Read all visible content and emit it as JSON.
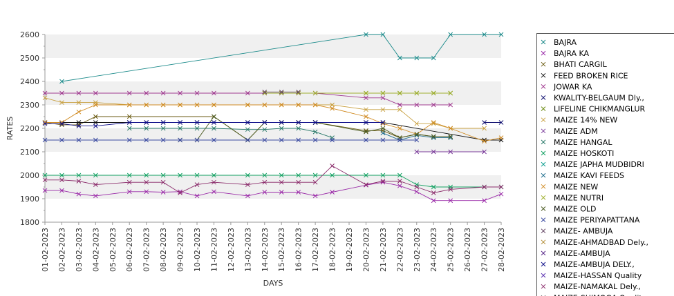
{
  "chart_data": {
    "type": "line",
    "title": "",
    "xlabel": "DAYS",
    "ylabel": "RATES",
    "ylim": [
      1800,
      2600
    ],
    "y_ticks": [
      1800,
      1900,
      2000,
      2100,
      2200,
      2300,
      2400,
      2500,
      2600
    ],
    "grid": "alternating horizontal bands",
    "legend_position": "right",
    "categories": [
      "01-02-2023",
      "02-02-2023",
      "03-02-2023",
      "04-02-2023",
      "05-02-2023",
      "06-02-2023",
      "07-02-2023",
      "08-02-2023",
      "09-02-2023",
      "10-02-2023",
      "11-02-2023",
      "12-02-2023",
      "13-02-2023",
      "14-02-2023",
      "15-02-2023",
      "16-02-2023",
      "17-02-2023",
      "18-02-2023",
      "19-02-2023",
      "20-02-2023",
      "21-02-2023",
      "22-02-2023",
      "23-02-2023",
      "24-02-2023",
      "25-02-2023",
      "26-02-2023",
      "27-02-2023",
      "28-02-2023"
    ],
    "series": [
      {
        "name": "BAJRA",
        "color": "#1a8a8a",
        "values": [
          null,
          2400,
          null,
          null,
          null,
          null,
          null,
          null,
          null,
          null,
          null,
          null,
          null,
          null,
          null,
          null,
          null,
          null,
          null,
          2600,
          2600,
          2500,
          2500,
          2500,
          2600,
          null,
          2600,
          2600
        ]
      },
      {
        "name": "BAJRA KA",
        "color": "#9a2aa8",
        "values": [
          1935,
          1935,
          1920,
          1912,
          null,
          1930,
          1930,
          1928,
          1930,
          1912,
          1930,
          null,
          1912,
          1928,
          1928,
          1928,
          1912,
          1928,
          null,
          1958,
          1970,
          1955,
          1930,
          1892,
          1892,
          null,
          1892,
          1920
        ]
      },
      {
        "name": "BHATI CARGIL",
        "color": "#6a5a10",
        "values": [
          2225,
          2215,
          2215,
          2250,
          null,
          2250,
          null,
          null,
          null,
          null,
          2250,
          null,
          2150,
          2225,
          2225,
          2225,
          2225,
          null,
          null,
          2190,
          2190,
          2160,
          2175,
          2165,
          2165,
          null,
          null,
          null
        ]
      },
      {
        "name": "FEED BROKEN RICE",
        "color": "#101010",
        "values": [
          2225,
          2225,
          2225,
          2225,
          null,
          2225,
          2225,
          2225,
          2225,
          2225,
          2225,
          null,
          2225,
          2225,
          2225,
          2225,
          2225,
          null,
          null,
          2225,
          2225,
          null,
          null,
          null,
          null,
          null,
          2150,
          2150
        ]
      },
      {
        "name": "JOWAR KA",
        "color": "#a03a90",
        "values": [
          2350,
          2350,
          2350,
          2350,
          null,
          2350,
          2350,
          2350,
          2350,
          2350,
          2350,
          null,
          2350,
          2350,
          2350,
          2350,
          2350,
          null,
          null,
          2330,
          2330,
          2300,
          2300,
          2300,
          2300,
          null,
          null,
          null
        ]
      },
      {
        "name": "KWALITY-BELGAUM Dly.,",
        "color": "#101070",
        "values": [
          null,
          null,
          null,
          null,
          null,
          null,
          null,
          null,
          null,
          null,
          null,
          null,
          null,
          null,
          null,
          null,
          null,
          null,
          null,
          null,
          null,
          null,
          null,
          null,
          null,
          null,
          2225,
          2225
        ]
      },
      {
        "name": "LIFELINE CHIKMANGLUR",
        "color": "#6a8a10",
        "values": [
          null,
          null,
          null,
          null,
          null,
          null,
          null,
          null,
          null,
          null,
          null,
          null,
          null,
          null,
          null,
          null,
          null,
          null,
          null,
          2350,
          2350,
          2350,
          2350,
          2350,
          2350,
          null,
          null,
          null
        ]
      },
      {
        "name": "MAIZE 14% NEW",
        "color": "#c8a040",
        "values": [
          2330,
          2310,
          2310,
          2310,
          null,
          2300,
          2300,
          2300,
          2300,
          2300,
          2300,
          null,
          2300,
          2300,
          2300,
          2300,
          2300,
          2300,
          null,
          2280,
          2280,
          2280,
          2220,
          2220,
          2200,
          null,
          2200,
          null
        ]
      },
      {
        "name": "MAIZE ADM",
        "color": "#7a3a9a",
        "values": [
          null,
          null,
          null,
          null,
          null,
          null,
          null,
          null,
          null,
          null,
          null,
          null,
          null,
          null,
          null,
          null,
          null,
          null,
          null,
          null,
          null,
          null,
          2100,
          2100,
          2100,
          null,
          2100,
          null
        ]
      },
      {
        "name": "MAIZE HANGAL",
        "color": "#2a7a6a",
        "values": [
          null,
          null,
          null,
          null,
          null,
          2200,
          2200,
          2200,
          2200,
          2200,
          2200,
          null,
          2195,
          2195,
          2200,
          2200,
          2185,
          2160,
          null,
          null,
          null,
          null,
          null,
          null,
          null,
          null,
          null,
          null
        ]
      },
      {
        "name": "MAIZE HOSKOTI",
        "color": "#10a060",
        "values": [
          2000,
          2000,
          2000,
          2000,
          null,
          2000,
          2000,
          2000,
          2000,
          2000,
          2000,
          null,
          2000,
          2000,
          2000,
          2000,
          2000,
          2000,
          null,
          2000,
          2000,
          2000,
          1960,
          1950,
          1950,
          null,
          1950,
          1950
        ]
      },
      {
        "name": "MAIZE JAPHA MUDBIDRI",
        "color": "#10a090",
        "values": [
          null,
          null,
          null,
          null,
          null,
          null,
          null,
          null,
          null,
          null,
          null,
          null,
          null,
          null,
          null,
          null,
          null,
          null,
          null,
          null,
          null,
          null,
          null,
          null,
          null,
          null,
          null,
          null
        ]
      },
      {
        "name": "MAIZE KAVI FEEDS",
        "color": "#1a6a8a",
        "values": [
          null,
          null,
          null,
          null,
          null,
          null,
          null,
          null,
          null,
          null,
          null,
          null,
          null,
          null,
          null,
          null,
          null,
          null,
          null,
          null,
          2180,
          2150,
          2170,
          2160,
          2160,
          null,
          null,
          null
        ]
      },
      {
        "name": "MAIZE NEW",
        "color": "#d08a20",
        "values": [
          2225,
          2225,
          2270,
          2300,
          null,
          2300,
          2300,
          2300,
          2300,
          2300,
          2300,
          null,
          2300,
          2300,
          2300,
          2300,
          2300,
          2285,
          null,
          2250,
          2220,
          2200,
          2175,
          2225,
          2200,
          null,
          2145,
          2160
        ]
      },
      {
        "name": "MAIZE NUTRI",
        "color": "#a0b030",
        "values": [
          null,
          null,
          null,
          null,
          null,
          null,
          null,
          null,
          null,
          null,
          null,
          null,
          null,
          2350,
          2350,
          2350,
          2350,
          null,
          null,
          2350,
          2350,
          2350,
          2350,
          2350,
          2350,
          null,
          null,
          null
        ]
      },
      {
        "name": "MAIZE OLD",
        "color": "#4a5a20",
        "values": [
          null,
          null,
          null,
          null,
          null,
          null,
          null,
          null,
          2150,
          2150,
          2250,
          null,
          2150,
          2225,
          2225,
          2225,
          2225,
          null,
          null,
          2185,
          2200,
          2160,
          2175,
          2165,
          2165,
          null,
          null,
          null
        ]
      },
      {
        "name": "MAIZE PERIYAPATTANA",
        "color": "#3a4aa0",
        "values": [
          2150,
          2150,
          2150,
          2150,
          null,
          2150,
          2150,
          2150,
          2150,
          2150,
          2150,
          null,
          2150,
          2150,
          2150,
          2150,
          2150,
          2150,
          null,
          2150,
          2150,
          2150,
          2150,
          null,
          null,
          null,
          null,
          null
        ]
      },
      {
        "name": "MAIZE- AMBUJA",
        "color": "#5a3a5a",
        "values": [
          null,
          null,
          null,
          null,
          null,
          null,
          null,
          null,
          null,
          null,
          null,
          null,
          null,
          2355,
          2355,
          2355,
          null,
          null,
          null,
          null,
          null,
          null,
          null,
          null,
          null,
          null,
          null,
          null
        ]
      },
      {
        "name": "MAIZE-AHMADBAD Dely.,",
        "color": "#b08a30",
        "values": [
          null,
          null,
          null,
          null,
          null,
          null,
          null,
          null,
          null,
          null,
          null,
          null,
          null,
          null,
          null,
          null,
          null,
          null,
          null,
          null,
          null,
          null,
          null,
          null,
          null,
          null,
          null,
          null
        ]
      },
      {
        "name": "MAIZE-AMBUJA",
        "color": "#5a2a8a",
        "values": [
          null,
          null,
          null,
          null,
          null,
          null,
          null,
          null,
          null,
          null,
          null,
          null,
          null,
          null,
          null,
          null,
          null,
          null,
          null,
          null,
          null,
          null,
          null,
          null,
          null,
          null,
          null,
          null
        ]
      },
      {
        "name": "MAIZE-AMBUJA DELY.,",
        "color": "#10108a",
        "values": [
          2220,
          2220,
          2210,
          2210,
          null,
          2225,
          2225,
          2225,
          2225,
          2225,
          2225,
          null,
          2225,
          2225,
          2225,
          2225,
          2225,
          null,
          null,
          2225,
          2225,
          null,
          null,
          null,
          null,
          null,
          null,
          null
        ]
      },
      {
        "name": "MAIZE-HASSAN Quality",
        "color": "#5a30b0",
        "values": [
          null,
          null,
          null,
          null,
          null,
          null,
          null,
          null,
          null,
          null,
          null,
          null,
          null,
          null,
          null,
          null,
          null,
          null,
          null,
          null,
          null,
          null,
          null,
          null,
          null,
          null,
          null,
          null
        ]
      },
      {
        "name": "MAIZE-NAMAKAL Dely.,",
        "color": "#8a2a6a",
        "values": [
          1980,
          1980,
          1975,
          1960,
          null,
          1970,
          1970,
          1970,
          1925,
          1960,
          1970,
          null,
          1960,
          1970,
          1970,
          1970,
          1970,
          2040,
          null,
          1960,
          1975,
          1975,
          1950,
          1925,
          1940,
          null,
          1950,
          1950
        ]
      }
    ]
  },
  "legend_overflow_label": "MAIZE-SHIMOGA Quality"
}
